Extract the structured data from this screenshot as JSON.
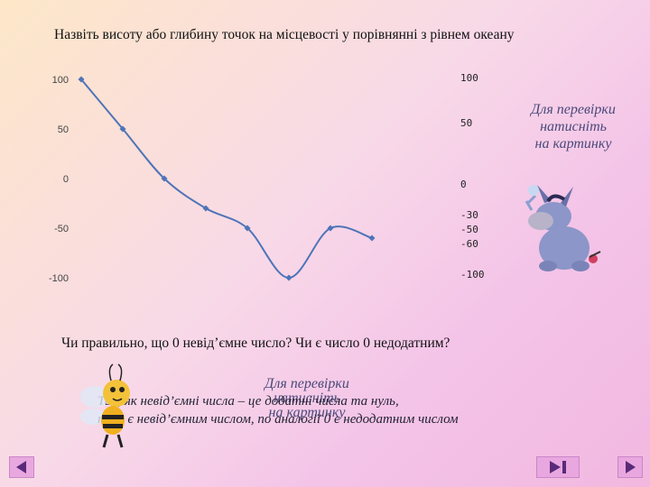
{
  "question1": "Назвіть висоту або глибину точок на місцевості у порівнянні з рівнем океану",
  "question2": "Чи правильно, що 0 невід’ємне число? Чи є число 0 недодатним?",
  "hint_top": [
    "Для перевірки",
    "натисніть",
    "на картинку"
  ],
  "hint_bottom": [
    "Для перевірки",
    "натисніть",
    "на картинку"
  ],
  "answer_lines": [
    "Так, як невід’ємні числа – це додатні числа та нуль,",
    "то 0 є невід’ємним числом, по аналогії 0 є недодатним числом"
  ],
  "right_labels": [
    "100",
    "50",
    "0",
    "-30",
    "-50",
    "-60",
    "-100"
  ],
  "chart_data": {
    "type": "line",
    "x": [
      1,
      2,
      3,
      4,
      5,
      6,
      7,
      8
    ],
    "values": [
      100,
      50,
      0,
      -30,
      -50,
      -100,
      -50,
      -60
    ],
    "yticks": [
      "100",
      "50",
      "0",
      "-50",
      "-100"
    ],
    "ylim": [
      -100,
      100
    ],
    "title": "",
    "xlabel": "",
    "ylabel": "",
    "color": "#4f74b8",
    "grid": false
  },
  "colors": {
    "nav_bg": "#e9a7e0",
    "nav_arrow": "#5a2a7a"
  },
  "icons": {
    "prev": "triangle-left-icon",
    "play_end": "play-end-icon",
    "next": "triangle-right-icon",
    "donkey": "eeyore-picture",
    "bee": "bee-picture"
  }
}
